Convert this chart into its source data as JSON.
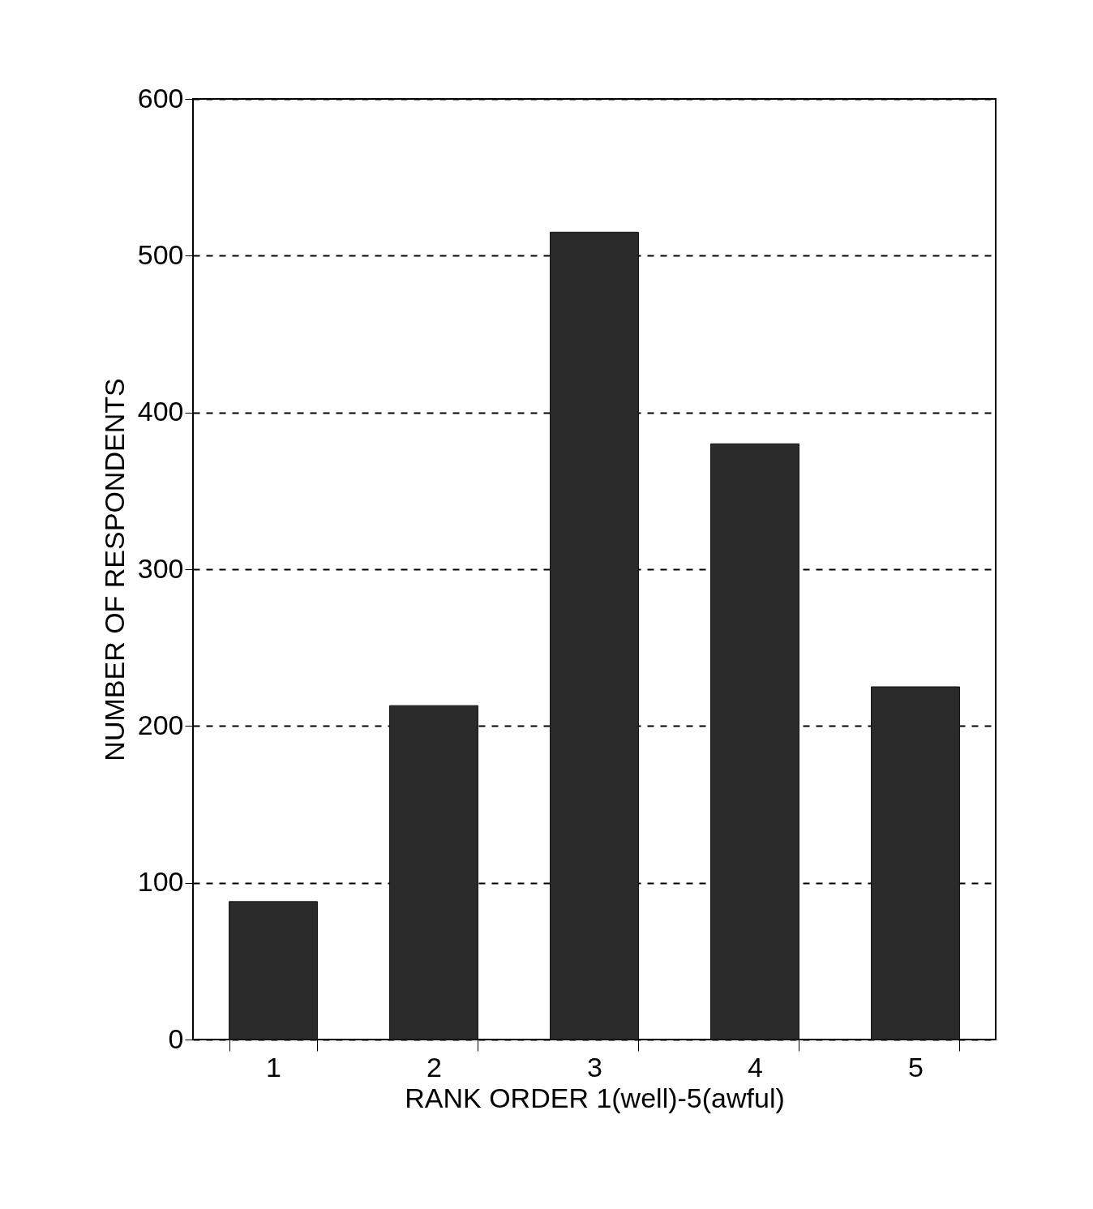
{
  "chart_data": {
    "type": "bar",
    "xlabel": "RANK ORDER 1(well)-5(awful)",
    "ylabel": "NUMBER OF RESPONDENTS",
    "categories": [
      "1",
      "2",
      "3",
      "4",
      "5"
    ],
    "values": [
      88,
      213,
      515,
      380,
      225
    ],
    "color": "#2b2b2b",
    "ylim": [
      0,
      600
    ],
    "yticks": [
      0,
      100,
      200,
      300,
      400,
      500,
      600
    ],
    "grid": "y",
    "line_style": "dashed"
  }
}
